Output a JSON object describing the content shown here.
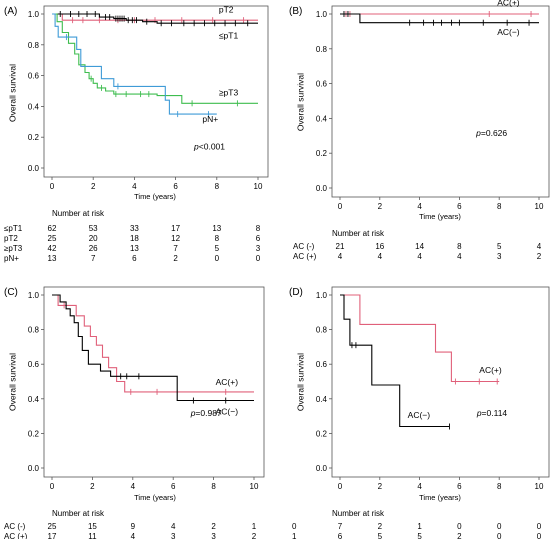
{
  "chart_data": [
    {
      "type": "line",
      "panel_label": "(A)",
      "ylabel": "Overall survival",
      "xlabel": "Time (years)",
      "xlim": [
        0,
        10
      ],
      "ylim": [
        0,
        1
      ],
      "xticks": [
        "0",
        "2",
        "4",
        "6",
        "8",
        "10"
      ],
      "yticks": [
        "0.0",
        "0.2",
        "0.4",
        "0.6",
        "0.8",
        "1.0"
      ],
      "pvalue": {
        "prefix": "p",
        "text": "<0.001"
      },
      "series": [
        {
          "label": "pT2",
          "color": "#e0607a",
          "steps": [
            [
              0,
              1.0
            ],
            [
              0.5,
              0.96
            ],
            [
              10,
              0.96
            ]
          ],
          "censor": [
            1.0,
            1.5,
            2.3,
            3.2,
            4.0,
            5.0,
            6.3,
            7.8,
            9.3
          ]
        },
        {
          "label": "≤pT1",
          "color": "#000000",
          "steps": [
            [
              0,
              1.0
            ],
            [
              2.3,
              0.98
            ],
            [
              3.0,
              0.97
            ],
            [
              3.6,
              0.96
            ],
            [
              4.4,
              0.95
            ],
            [
              5.1,
              0.94
            ],
            [
              10,
              0.94
            ]
          ],
          "censor": [
            0.4,
            0.9,
            1.3,
            1.7,
            2.1,
            2.6,
            2.8,
            3.1,
            3.2,
            3.3,
            3.4,
            3.5,
            3.7,
            3.9,
            4.1,
            4.6,
            5.3,
            5.8,
            6.4,
            6.9,
            7.4,
            7.9,
            8.4,
            8.9,
            9.5
          ]
        },
        {
          "label": "≥pT3",
          "color": "#3ebd4f",
          "steps": [
            [
              0,
              1.0
            ],
            [
              0.25,
              0.95
            ],
            [
              0.5,
              0.88
            ],
            [
              0.8,
              0.81
            ],
            [
              1.1,
              0.74
            ],
            [
              1.3,
              0.67
            ],
            [
              1.6,
              0.62
            ],
            [
              1.8,
              0.58
            ],
            [
              2.0,
              0.55
            ],
            [
              2.2,
              0.52
            ],
            [
              2.6,
              0.5
            ],
            [
              3.0,
              0.48
            ],
            [
              5.1,
              0.47
            ],
            [
              6.3,
              0.42
            ],
            [
              10,
              0.42
            ]
          ],
          "censor": [
            1.9,
            2.4,
            3.1,
            3.6,
            4.3,
            4.7,
            6.8,
            9.0
          ]
        },
        {
          "label": "pN+",
          "color": "#3f9bd7",
          "steps": [
            [
              0,
              1.0
            ],
            [
              0.15,
              0.92
            ],
            [
              0.3,
              0.85
            ],
            [
              1.2,
              0.77
            ],
            [
              1.4,
              0.66
            ],
            [
              2.4,
              0.58
            ],
            [
              3.0,
              0.53
            ],
            [
              5.5,
              0.44
            ],
            [
              5.7,
              0.35
            ],
            [
              8.0,
              0.35
            ]
          ],
          "censor": [
            0.7,
            3.2,
            6.1,
            7.6
          ]
        }
      ],
      "annotations": [
        {
          "text": "pT2",
          "x": 8.1,
          "y": 1.01
        },
        {
          "text": "≤pT1",
          "x": 8.1,
          "y": 0.84
        },
        {
          "text": "≥pT3",
          "x": 8.1,
          "y": 0.47
        },
        {
          "text": "pN+",
          "x": 7.3,
          "y": 0.3
        }
      ],
      "risk_table": {
        "title": "Number at risk",
        "times": [
          0,
          2,
          4,
          6,
          8,
          10
        ],
        "rows": [
          {
            "label": "≤pT1",
            "values": [
              62,
              53,
              33,
              17,
              13,
              8
            ]
          },
          {
            "label": "pT2",
            "values": [
              25,
              20,
              18,
              12,
              8,
              6
            ]
          },
          {
            "label": "≥pT3",
            "values": [
              42,
              26,
              13,
              7,
              5,
              3
            ]
          },
          {
            "label": "pN+",
            "values": [
              13,
              7,
              6,
              2,
              0,
              0
            ]
          }
        ]
      }
    },
    {
      "type": "line",
      "panel_label": "(B)",
      "ylabel": "Overall survival",
      "xlabel": "Time (years)",
      "xlim": [
        0,
        10
      ],
      "ylim": [
        0,
        1
      ],
      "xticks": [
        "0",
        "2",
        "4",
        "6",
        "8",
        "10"
      ],
      "yticks": [
        "0.0",
        "0.2",
        "0.4",
        "0.6",
        "0.8",
        "1.0"
      ],
      "pvalue": {
        "prefix": "p",
        "text": "=0.626"
      },
      "series": [
        {
          "label": "AC(+)",
          "color": "#e0607a",
          "steps": [
            [
              0,
              1.0
            ],
            [
              10,
              1.0
            ]
          ],
          "censor": [
            0.3,
            0.5,
            7.5,
            9.6
          ]
        },
        {
          "label": "AC(−)",
          "color": "#000000",
          "steps": [
            [
              0,
              1.0
            ],
            [
              1.0,
              0.95
            ],
            [
              10,
              0.95
            ]
          ],
          "censor": [
            0.2,
            0.4,
            3.5,
            4.2,
            4.7,
            5.1,
            5.6,
            6.0,
            7.2,
            8.4,
            9.5
          ]
        }
      ],
      "annotations": [
        {
          "text": "AC(+)",
          "x": 7.9,
          "y": 1.05
        },
        {
          "text": "AC(−)",
          "x": 7.9,
          "y": 0.88
        }
      ],
      "risk_table": {
        "title": "Number at risk",
        "times": [
          0,
          2,
          4,
          6,
          8,
          10
        ],
        "rows": [
          {
            "label": "AC (-)",
            "values": [
              21,
              16,
              14,
              8,
              5,
              4
            ]
          },
          {
            "label": "AC (+)",
            "values": [
              4,
              4,
              4,
              4,
              3,
              2
            ]
          }
        ]
      }
    },
    {
      "type": "line",
      "panel_label": "(C)",
      "ylabel": "Overall survival",
      "xlabel": "Time (years)",
      "xlim": [
        0,
        10
      ],
      "ylim": [
        0,
        1
      ],
      "xticks": [
        "0",
        "2",
        "4",
        "6",
        "8",
        "10"
      ],
      "yticks": [
        "0.0",
        "0.2",
        "0.4",
        "0.6",
        "0.8",
        "1.0"
      ],
      "pvalue": {
        "prefix": "p",
        "text": "=0.987"
      },
      "series": [
        {
          "label": "AC(+)",
          "color": "#e0607a",
          "steps": [
            [
              0,
              1.0
            ],
            [
              0.3,
              0.94
            ],
            [
              1.2,
              0.88
            ],
            [
              1.6,
              0.82
            ],
            [
              1.9,
              0.76
            ],
            [
              2.2,
              0.71
            ],
            [
              2.5,
              0.64
            ],
            [
              2.8,
              0.58
            ],
            [
              3.2,
              0.5
            ],
            [
              3.6,
              0.44
            ],
            [
              10,
              0.44
            ]
          ],
          "censor": [
            0.6,
            3.9,
            5.2,
            8.6
          ]
        },
        {
          "label": "AC(−)",
          "color": "#000000",
          "steps": [
            [
              0,
              1.0
            ],
            [
              0.4,
              0.96
            ],
            [
              0.7,
              0.92
            ],
            [
              0.9,
              0.88
            ],
            [
              1.1,
              0.84
            ],
            [
              1.3,
              0.76
            ],
            [
              1.5,
              0.68
            ],
            [
              1.8,
              0.6
            ],
            [
              2.4,
              0.56
            ],
            [
              2.9,
              0.53
            ],
            [
              6.2,
              0.39
            ],
            [
              10,
              0.39
            ]
          ],
          "censor": [
            3.4,
            3.7,
            4.3,
            7.0,
            8.6
          ]
        }
      ],
      "annotations": [
        {
          "text": "AC(+)",
          "x": 8.1,
          "y": 0.48
        },
        {
          "text": "AC(−)",
          "x": 8.1,
          "y": 0.31
        }
      ],
      "risk_table": {
        "title": "Number at risk",
        "times": [
          0,
          2,
          4,
          6,
          8,
          10
        ],
        "rows": [
          {
            "label": "AC (-)",
            "values": [
              25,
              15,
              9,
              4,
              2,
              1
            ]
          },
          {
            "label": "AC (+)",
            "values": [
              17,
              11,
              4,
              3,
              3,
              2
            ]
          }
        ]
      }
    },
    {
      "type": "line",
      "panel_label": "(D)",
      "ylabel": "Overall survival",
      "xlabel": "Time (years)",
      "xlim": [
        0,
        10
      ],
      "ylim": [
        0,
        1
      ],
      "xticks": [
        "0",
        "2",
        "4",
        "6",
        "8",
        "10"
      ],
      "yticks": [
        "0.0",
        "0.2",
        "0.4",
        "0.6",
        "0.8",
        "1.0"
      ],
      "pvalue": {
        "prefix": "p",
        "text": "=0.114"
      },
      "series": [
        {
          "label": "AC(+)",
          "color": "#e0607a",
          "steps": [
            [
              0,
              1.0
            ],
            [
              1.0,
              0.83
            ],
            [
              4.8,
              0.67
            ],
            [
              5.6,
              0.5
            ],
            [
              8.0,
              0.5
            ]
          ],
          "censor": [
            5.8,
            7.0,
            7.9
          ]
        },
        {
          "label": "AC(−)",
          "color": "#000000",
          "steps": [
            [
              0,
              1.0
            ],
            [
              0.2,
              0.86
            ],
            [
              0.5,
              0.71
            ],
            [
              1.6,
              0.48
            ],
            [
              3.0,
              0.24
            ],
            [
              5.5,
              0.24
            ]
          ],
          "censor": [
            0.6,
            0.8,
            5.5
          ]
        }
      ],
      "annotations": [
        {
          "text": "AC(+)",
          "x": 7.0,
          "y": 0.55
        },
        {
          "text": "AC(−)",
          "x": 3.4,
          "y": 0.29
        }
      ],
      "risk_table": {
        "title": "Number at risk",
        "times": [
          0,
          2,
          4,
          6,
          8,
          10
        ],
        "rows": [
          {
            "label": "0",
            "values": [
              7,
              2,
              1,
              0,
              0,
              0
            ]
          },
          {
            "label": "1",
            "values": [
              6,
              5,
              5,
              2,
              0,
              0
            ]
          }
        ]
      }
    }
  ]
}
